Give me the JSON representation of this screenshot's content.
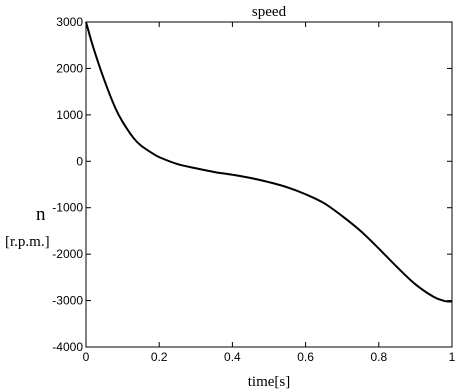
{
  "chart_data": {
    "type": "line",
    "title": "speed",
    "xlabel": "time[s]",
    "ylabel": "n",
    "ylabel_unit": "[r.p.m.]",
    "xlim": [
      0,
      1
    ],
    "ylim": [
      -4000,
      3000
    ],
    "xticks": [
      0,
      0.2,
      0.4,
      0.6,
      0.8,
      1
    ],
    "yticks": [
      3000,
      2000,
      1000,
      0,
      -1000,
      -2000,
      -3000,
      -4000
    ],
    "grid": false,
    "series": [
      {
        "color": "#000000",
        "x": [
          0,
          0.02,
          0.05,
          0.08,
          0.1,
          0.13,
          0.15,
          0.18,
          0.2,
          0.25,
          0.3,
          0.35,
          0.4,
          0.45,
          0.5,
          0.55,
          0.6,
          0.65,
          0.7,
          0.75,
          0.8,
          0.85,
          0.9,
          0.95,
          0.98,
          1.0
        ],
        "y": [
          3000,
          2450,
          1750,
          1150,
          850,
          500,
          340,
          180,
          90,
          -60,
          -150,
          -230,
          -290,
          -360,
          -450,
          -560,
          -710,
          -900,
          -1180,
          -1500,
          -1880,
          -2280,
          -2650,
          -2920,
          -3010,
          -3020
        ]
      }
    ]
  }
}
